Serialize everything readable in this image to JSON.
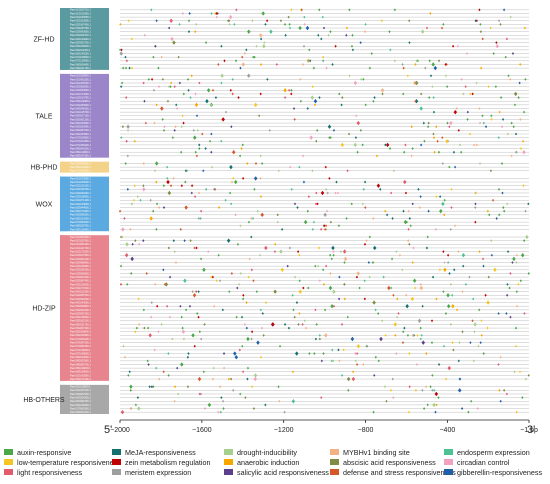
{
  "figure": {
    "five_prime": "5'",
    "three_prime": "3'"
  },
  "chart_data": {
    "type": "scatter",
    "x_axis": {
      "ticks": [
        -2000,
        -1600,
        -1200,
        -800,
        -400,
        -1
      ],
      "tick_labels": [
        "−2000",
        "−1600",
        "−1200",
        "−800",
        "−400",
        "−1 bp"
      ],
      "xlim": [
        -2000,
        -1
      ]
    },
    "families": [
      {
        "name": "ZF-HD",
        "genes": 17,
        "color": "#5b9aa0"
      },
      {
        "name": "TALE",
        "genes": 23,
        "color": "#9a86c9"
      },
      {
        "name": "HB-PHD",
        "genes": 3,
        "color": "#f3d28a"
      },
      {
        "name": "WOX",
        "genes": 15,
        "color": "#5aa9e0"
      },
      {
        "name": "HD-ZIP",
        "genes": 40,
        "color": "#e8848d"
      },
      {
        "name": "HB-OTHERS",
        "genes": 8,
        "color": "#a8a8a8"
      }
    ],
    "gene_ids": [
      "Pavi.01G000710.1",
      "Pavi.01G015300.1",
      "Pavi.01G160550.1",
      "Pavi.02G102800.1",
      "Pavi.02G187400.1",
      "Pavi.03G045780.1",
      "Pavi.03G093600.1",
      "Pavi.04G021510.1",
      "Pavi.04G120620.1",
      "Pavi.05G002700.1",
      "Pavi.05G169000.1",
      "Pavi.06G011300.1",
      "Pavi.06G145200.1",
      "Pavi.07G018900.1",
      "Pavi.07G129600.1",
      "Pavi.08G006400.1",
      "Pavi.08G101700.1",
      "Pavi.01G028900.1",
      "Pavi.01G093200.1",
      "Pavi.01G158100.1",
      "Pavi.02G008200.1",
      "Pavi.02G054600.1",
      "Pavi.02G173400.1",
      "Pavi.03G014700.1",
      "Pavi.03G112300.1",
      "Pavi.03G183900.1",
      "Pavi.04G049100.1",
      "Pavi.04G126700.1",
      "Pavi.05G017100.1",
      "Pavi.05G061300.1",
      "Pavi.05G150900.1",
      "Pavi.06G033400.1",
      "Pavi.06G097200.1",
      "Pavi.06G163500.1",
      "Pavi.07G025800.1",
      "Pavi.07G104300.1",
      "Pavi.07G156200.1",
      "Pavi.08G043100.1",
      "Pavi.08G112800.1",
      "Pavi.08G147300.1",
      "Pavi.02G068200.1",
      "Pavi.05G120300.1",
      "Pavi.07G072500.1",
      "Pavi.01G073500.1",
      "Pavi.01G165200.1",
      "Pavi.02G121000.1",
      "Pavi.02G196700.1",
      "Pavi.03G030200.1",
      "Pavi.03G158600.1",
      "Pavi.04G071400.1",
      "Pavi.04G133800.1",
      "Pavi.05G044900.1",
      "Pavi.05G176400.1",
      "Pavi.06G058300.1",
      "Pavi.06G124100.1",
      "Pavi.07G083200.1",
      "Pavi.08G028700.1",
      "Pavi.08G128400.1",
      "Pavi.01G009300.1",
      "Pavi.01G037600.1",
      "Pavi.01G081400.1",
      "Pavi.01G121700.1",
      "Pavi.01G172300.1",
      "Pavi.02G017900.1",
      "Pavi.02G061200.1",
      "Pavi.02G098400.1",
      "Pavi.02G139300.1",
      "Pavi.02G181600.1",
      "Pavi.03G006800.1",
      "Pavi.03G053100.1",
      "Pavi.03G087400.1",
      "Pavi.03G126900.1",
      "Pavi.03G171500.1",
      "Pavi.04G012300.1",
      "Pavi.04G056700.1",
      "Pavi.04G091800.1",
      "Pavi.04G144200.1",
      "Pavi.05G009800.1",
      "Pavi.05G052400.1",
      "Pavi.05G097300.1",
      "Pavi.05G138600.1",
      "Pavi.05G182100.1",
      "Pavi.06G021700.1",
      "Pavi.06G067400.1",
      "Pavi.06G109800.1",
      "Pavi.06G152900.1",
      "Pavi.07G009100.1",
      "Pavi.07G047200.1",
      "Pavi.07G091500.1",
      "Pavi.07G118300.1",
      "Pavi.07G148900.1",
      "Pavi.08G012600.1",
      "Pavi.08G052900.1",
      "Pavi.08G083700.1",
      "Pavi.08G119200.1",
      "Pavi.08G139600.1",
      "Pavi.01G142800.1",
      "Pavi.06G171300.1",
      "Pavi.01G113900.1",
      "Pavi.02G150700.1",
      "Pavi.03G067500.1",
      "Pavi.04G104200.1",
      "Pavi.05G081600.1",
      "Pavi.06G138400.1",
      "Pavi.07G065300.1",
      "Pavi.08G094100.1"
    ],
    "legend": [
      {
        "label": "auxin-responsive",
        "color": "#4aa84a"
      },
      {
        "label": "MeJA-responsiveness",
        "color": "#13706e"
      },
      {
        "label": "drought-inducibility",
        "color": "#a8d08d"
      },
      {
        "label": "MYBHv1 binding site",
        "color": "#f4b183"
      },
      {
        "label": "endosperm expression",
        "color": "#4cc191"
      },
      {
        "label": "low-temperature responsiveness",
        "color": "#f3c623"
      },
      {
        "label": "zein metabolism regulation",
        "color": "#c00000"
      },
      {
        "label": "anaerobic induction",
        "color": "#f6a800"
      },
      {
        "label": "abscisic acid responsiveness",
        "color": "#7f8c45"
      },
      {
        "label": "circadian control",
        "color": "#f2a1c0"
      },
      {
        "label": "light responsiveness",
        "color": "#e15a6e"
      },
      {
        "label": "meristem expression",
        "color": "#9e9e9e"
      },
      {
        "label": "salicylic acid responsiveness",
        "color": "#5b3f8c"
      },
      {
        "label": "defense and stress responsiveness",
        "color": "#d4572a"
      },
      {
        "label": "gibberellin-responsiveness",
        "color": "#1f5fa8"
      }
    ]
  }
}
